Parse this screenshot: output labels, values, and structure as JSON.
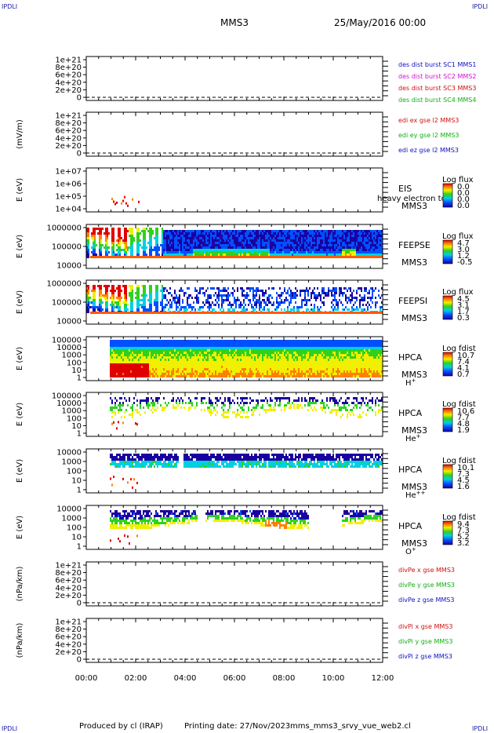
{
  "corner_label": "IPDLI",
  "header": {
    "mission": "MMS3",
    "date": "25/May/2016 00:00"
  },
  "footer": {
    "produced_by": "Produced by cl (IRAP)",
    "printing_date": "Printing date: 27/Nov/2023",
    "script_name": "mms_mms3_srvy_vue_web2.cl"
  },
  "chart_data": {
    "type": "heatmap",
    "x_ticks": [
      "00:00",
      "02:00",
      "04:00",
      "06:00",
      "08:00",
      "10:00",
      "12:00"
    ],
    "x_range_hours": [
      0,
      12
    ],
    "panels": [
      {
        "id": "des_dist",
        "ylabel": "",
        "yticks": [
          "1e+21",
          "8e+20",
          "6e+20",
          "4e+20",
          "2e+20",
          "0"
        ],
        "legend": [
          {
            "text": "des dist burst SC1 MMS1",
            "color": "#1010c0"
          },
          {
            "text": "des dist burst SC2 MMS2",
            "color": "#d010d0"
          },
          {
            "text": "des dist burst SC3 MMS3",
            "color": "#d01010"
          },
          {
            "text": "des dist burst SC4 MMS4",
            "color": "#10b010"
          }
        ]
      },
      {
        "id": "edi",
        "ylabel": "(mV/m)",
        "yticks": [
          "1e+21",
          "8e+20",
          "6e+20",
          "4e+20",
          "2e+20",
          "0"
        ],
        "legend": [
          {
            "text": "edi ex gse l2 MMS3",
            "color": "#d01010"
          },
          {
            "text": "edi ey gse l2 MMS3",
            "color": "#10b010"
          },
          {
            "text": "edi ez gse l2 MMS3",
            "color": "#1010c0"
          }
        ]
      },
      {
        "id": "eis",
        "ylabel": "E (eV)",
        "yticks": [
          "1e+07",
          "1e+06",
          "1e+05",
          "1e+04"
        ],
        "instrument": "EIS",
        "sc": "MMS3",
        "overlay": "heavy electron to",
        "cbar_title": "Log flux",
        "cbar_ticks": [
          "0.0",
          "0.0",
          "0.0",
          "0.0"
        ]
      },
      {
        "id": "feepse",
        "ylabel": "E (eV)",
        "yticks": [
          "1000000",
          "100000",
          "10000"
        ],
        "instrument": "FEEPSE",
        "sc": "MMS3",
        "cbar_title": "Log flux",
        "cbar_ticks": [
          "4.7",
          "3.0",
          "1.2",
          "-0.5"
        ]
      },
      {
        "id": "feepsi",
        "ylabel": "E (eV)",
        "yticks": [
          "1000000",
          "100000",
          "10000"
        ],
        "instrument": "FEEPSI",
        "sc": "MMS3",
        "cbar_title": "Log flux",
        "cbar_ticks": [
          "4.5",
          "3.1",
          "1.7",
          "0.3"
        ]
      },
      {
        "id": "hpca_h",
        "ylabel": "E (eV)",
        "yticks": [
          "100000",
          "10000",
          "1000",
          "100",
          "10",
          "1"
        ],
        "instrument": "HPCA",
        "sc": "MMS3",
        "species": "H",
        "charge": "+",
        "cbar_title": "Log fdist",
        "cbar_ticks": [
          "10.7",
          "7.4",
          "4.1",
          "0.7"
        ]
      },
      {
        "id": "hpca_he1",
        "ylabel": "E (eV)",
        "yticks": [
          "100000",
          "10000",
          "1000",
          "100",
          "10",
          "1"
        ],
        "instrument": "HPCA",
        "sc": "MMS3",
        "species": "He",
        "charge": "+",
        "cbar_title": "Log fdist",
        "cbar_ticks": [
          "10.6",
          "7.7",
          "4.8",
          "1.9"
        ]
      },
      {
        "id": "hpca_he2",
        "ylabel": "E (eV)",
        "yticks": [
          "10000",
          "1000",
          "100",
          "10",
          "1"
        ],
        "instrument": "HPCA",
        "sc": "MMS3",
        "species": "He",
        "charge": "++",
        "cbar_title": "Log fdist",
        "cbar_ticks": [
          "10.1",
          "7.3",
          "4.5",
          "1.6"
        ]
      },
      {
        "id": "hpca_o",
        "ylabel": "E (eV)",
        "yticks": [
          "10000",
          "1000",
          "100",
          "10",
          "1"
        ],
        "instrument": "HPCA",
        "sc": "MMS3",
        "species": "O",
        "charge": "+",
        "cbar_title": "Log fdist",
        "cbar_ticks": [
          "9.4",
          "7.3",
          "5.2",
          "3.2"
        ]
      },
      {
        "id": "divpe",
        "ylabel": "(nPa/km)",
        "yticks": [
          "1e+21",
          "8e+20",
          "6e+20",
          "4e+20",
          "2e+20",
          "0"
        ],
        "legend": [
          {
            "text": "divPe x gse MMS3",
            "color": "#d01010"
          },
          {
            "text": "divPe y gse MMS3",
            "color": "#10b010"
          },
          {
            "text": "divPe z gse MMS3",
            "color": "#1010c0"
          }
        ]
      },
      {
        "id": "divpi",
        "ylabel": "(nPa/km)",
        "yticks": [
          "1e+21",
          "8e+20",
          "6e+20",
          "4e+20",
          "2e+20",
          "0"
        ],
        "legend": [
          {
            "text": "divPi x gse MMS3",
            "color": "#d01010"
          },
          {
            "text": "divPi y gse MMS3",
            "color": "#10b010"
          },
          {
            "text": "divPi z gse MMS3",
            "color": "#1010c0"
          }
        ]
      }
    ]
  }
}
